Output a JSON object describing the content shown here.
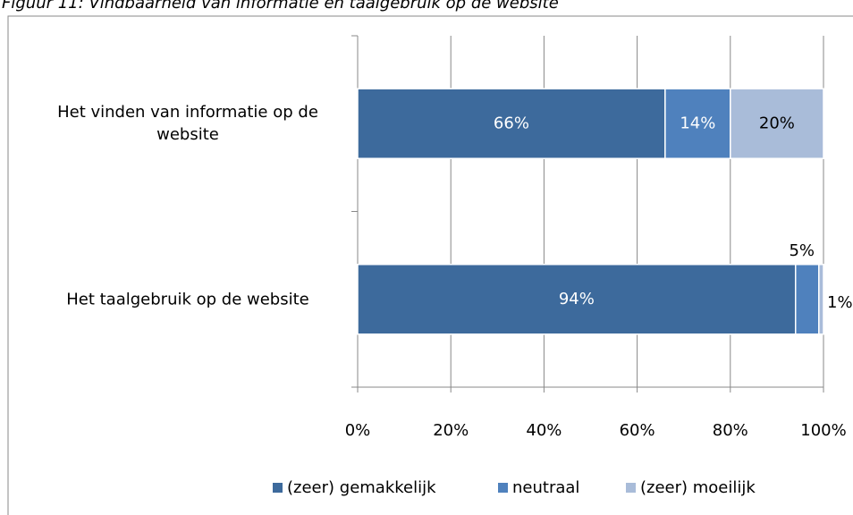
{
  "chart_data": {
    "type": "stacked-bar-horizontal",
    "title": "Figuur 11: Vindbaarheid van informatie en taalgebruik op de website",
    "categories": [
      "Het vinden van informatie op de website",
      "Het taalgebruik op de website"
    ],
    "series": [
      {
        "name": "(zeer) gemakkelijk",
        "color": "#3d6a9c",
        "values": [
          66,
          94
        ],
        "value_labels": [
          "66%",
          "94%"
        ]
      },
      {
        "name": "neutraal",
        "color": "#4f81bd",
        "values": [
          14,
          5
        ],
        "value_labels": [
          "14%",
          "5%"
        ]
      },
      {
        "name": "(zeer) moeilijk",
        "color": "#a9bcd9",
        "values": [
          20,
          1
        ],
        "value_labels": [
          "20%",
          "1%"
        ]
      }
    ],
    "xlim": [
      0,
      100
    ],
    "xticks": [
      {
        "value": 0,
        "label": "0%"
      },
      {
        "value": 20,
        "label": "20%"
      },
      {
        "value": 40,
        "label": "40%"
      },
      {
        "value": 60,
        "label": "60%"
      },
      {
        "value": 80,
        "label": "80%"
      },
      {
        "value": 100,
        "label": "100%"
      }
    ],
    "grid": true,
    "legend": "bottom"
  }
}
